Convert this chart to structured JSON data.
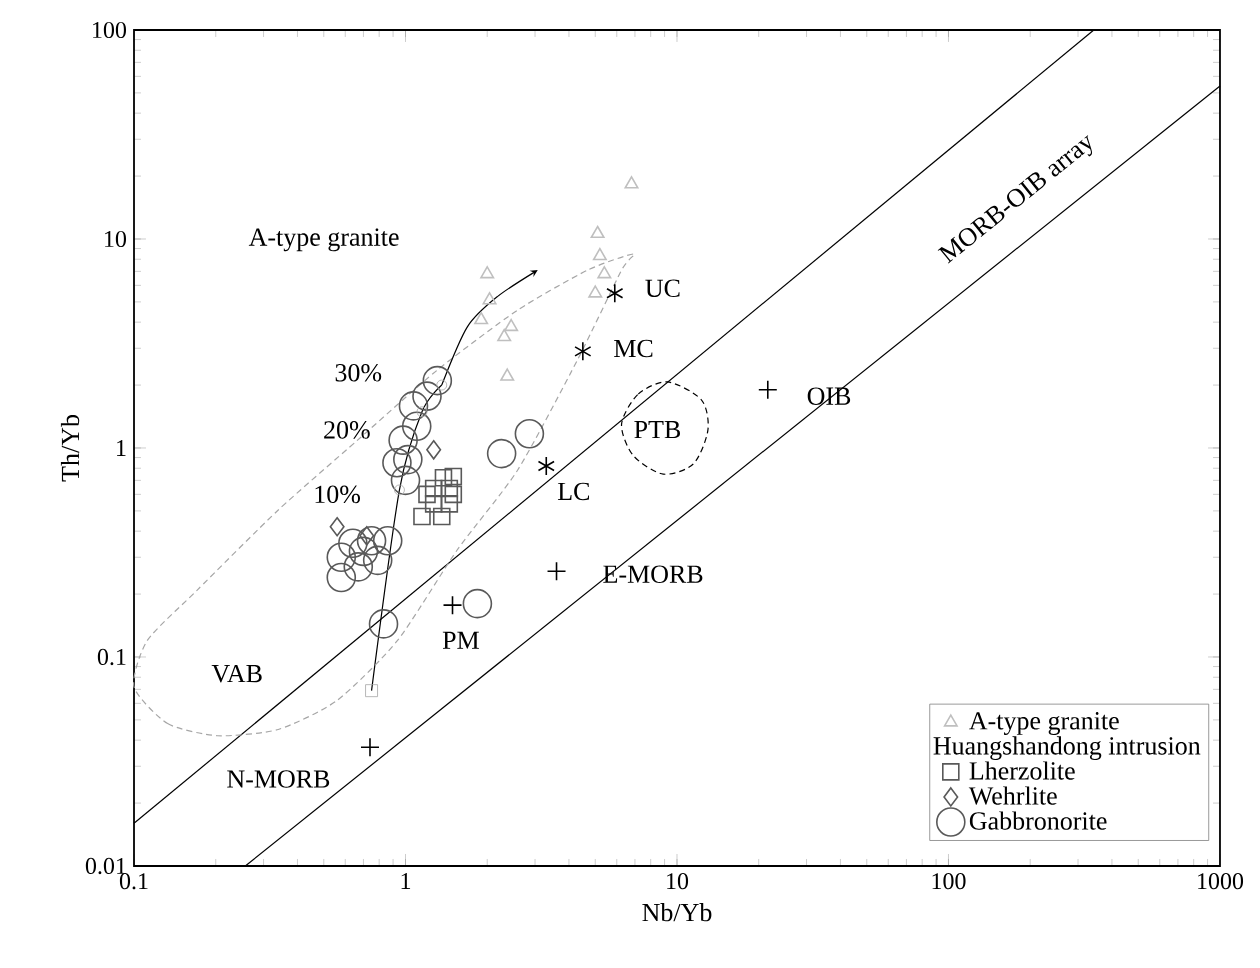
{
  "chart_data": {
    "type": "scatter",
    "xlabel": "Nb/Yb",
    "ylabel": "Th/Yb",
    "log": "xy",
    "xlim": [
      0.1,
      1000
    ],
    "ylim": [
      0.01,
      100
    ],
    "xticks": [
      0.1,
      1,
      10,
      100,
      1000
    ],
    "yticks": [
      0.01,
      0.1,
      1,
      10,
      100
    ],
    "legend": "bottom right",
    "legend_title": "Huangshandong intrusion",
    "series": [
      {
        "name": "A-type granite",
        "marker": "triangle",
        "color": "#bfbfbf",
        "x": [
          2.0,
          2.04,
          1.9,
          2.45,
          2.31,
          2.37,
          5.1,
          5.2,
          5.4,
          5.0,
          6.8
        ],
        "values": [
          6.8,
          5.1,
          4.1,
          3.8,
          3.4,
          2.2,
          10.6,
          8.3,
          6.8,
          5.5,
          18.3
        ]
      },
      {
        "name": "Lherzolite",
        "marker": "square",
        "color": "#595959",
        "x": [
          1.15,
          1.27,
          1.27,
          1.36,
          1.45,
          1.45,
          1.5,
          1.2,
          1.38,
          1.5
        ],
        "values": [
          0.47,
          0.54,
          0.64,
          0.47,
          0.54,
          0.64,
          0.73,
          0.6,
          0.72,
          0.6
        ]
      },
      {
        "name": "Wehrlite",
        "marker": "diamond",
        "color": "#595959",
        "x": [
          0.56,
          1.27,
          0.72
        ],
        "values": [
          0.42,
          0.98,
          0.38
        ]
      },
      {
        "name": "Gabbronorite",
        "marker": "circle",
        "color": "#595959",
        "x": [
          1.31,
          1.2,
          1.07,
          1.1,
          0.98,
          1.02,
          0.93,
          2.26,
          2.86,
          0.58,
          0.64,
          0.75,
          0.86,
          0.67,
          0.79,
          0.58,
          0.83,
          1.84,
          0.7,
          1.0
        ],
        "values": [
          2.1,
          1.77,
          1.59,
          1.27,
          1.09,
          0.88,
          0.85,
          0.94,
          1.17,
          0.3,
          0.35,
          0.36,
          0.36,
          0.27,
          0.29,
          0.24,
          0.144,
          0.18,
          0.32,
          0.7
        ]
      },
      {
        "marker": "cross",
        "color": "#000000",
        "x": [
          5.9,
          4.5,
          3.3
        ],
        "values": [
          5.5,
          2.9,
          0.82
        ]
      },
      {
        "marker": "cross",
        "color": "#000000",
        "x": [
          1.49,
          0.74,
          3.6,
          21.6
        ],
        "values": [
          0.177,
          0.037,
          0.257,
          1.9
        ]
      },
      {
        "type": "line",
        "marker": "none",
        "color": "#000000",
        "x": [
          0.75,
          0.95,
          1.15,
          1.36
        ],
        "values": [
          0.069,
          0.63,
          1.49,
          2.0
        ]
      },
      {
        "marker": "circle",
        "color": "#a6a6a6",
        "x": [
          0.95,
          1.15,
          1.36
        ],
        "values": [
          0.63,
          1.49,
          2.0
        ]
      },
      {
        "marker": "square",
        "color": "#a6a6a6",
        "x": [
          0.75
        ],
        "values": [
          0.069
        ]
      },
      {
        "type": "line",
        "marker": "none",
        "color": "#000000",
        "x": [
          0.1,
          343
        ],
        "values": [
          0.016,
          100
        ]
      },
      {
        "type": "line",
        "marker": "none",
        "color": "#000000",
        "x": [
          0.257,
          1000
        ],
        "values": [
          0.01,
          54
        ]
      }
    ],
    "annotations": [
      "A-type granite",
      "30%",
      "20%",
      "10%",
      "UC",
      "MC",
      "LC",
      "PTB",
      "OIB",
      "E-MORB",
      "PM",
      "N-MORB",
      "VAB",
      "MORB-OIB array"
    ]
  }
}
